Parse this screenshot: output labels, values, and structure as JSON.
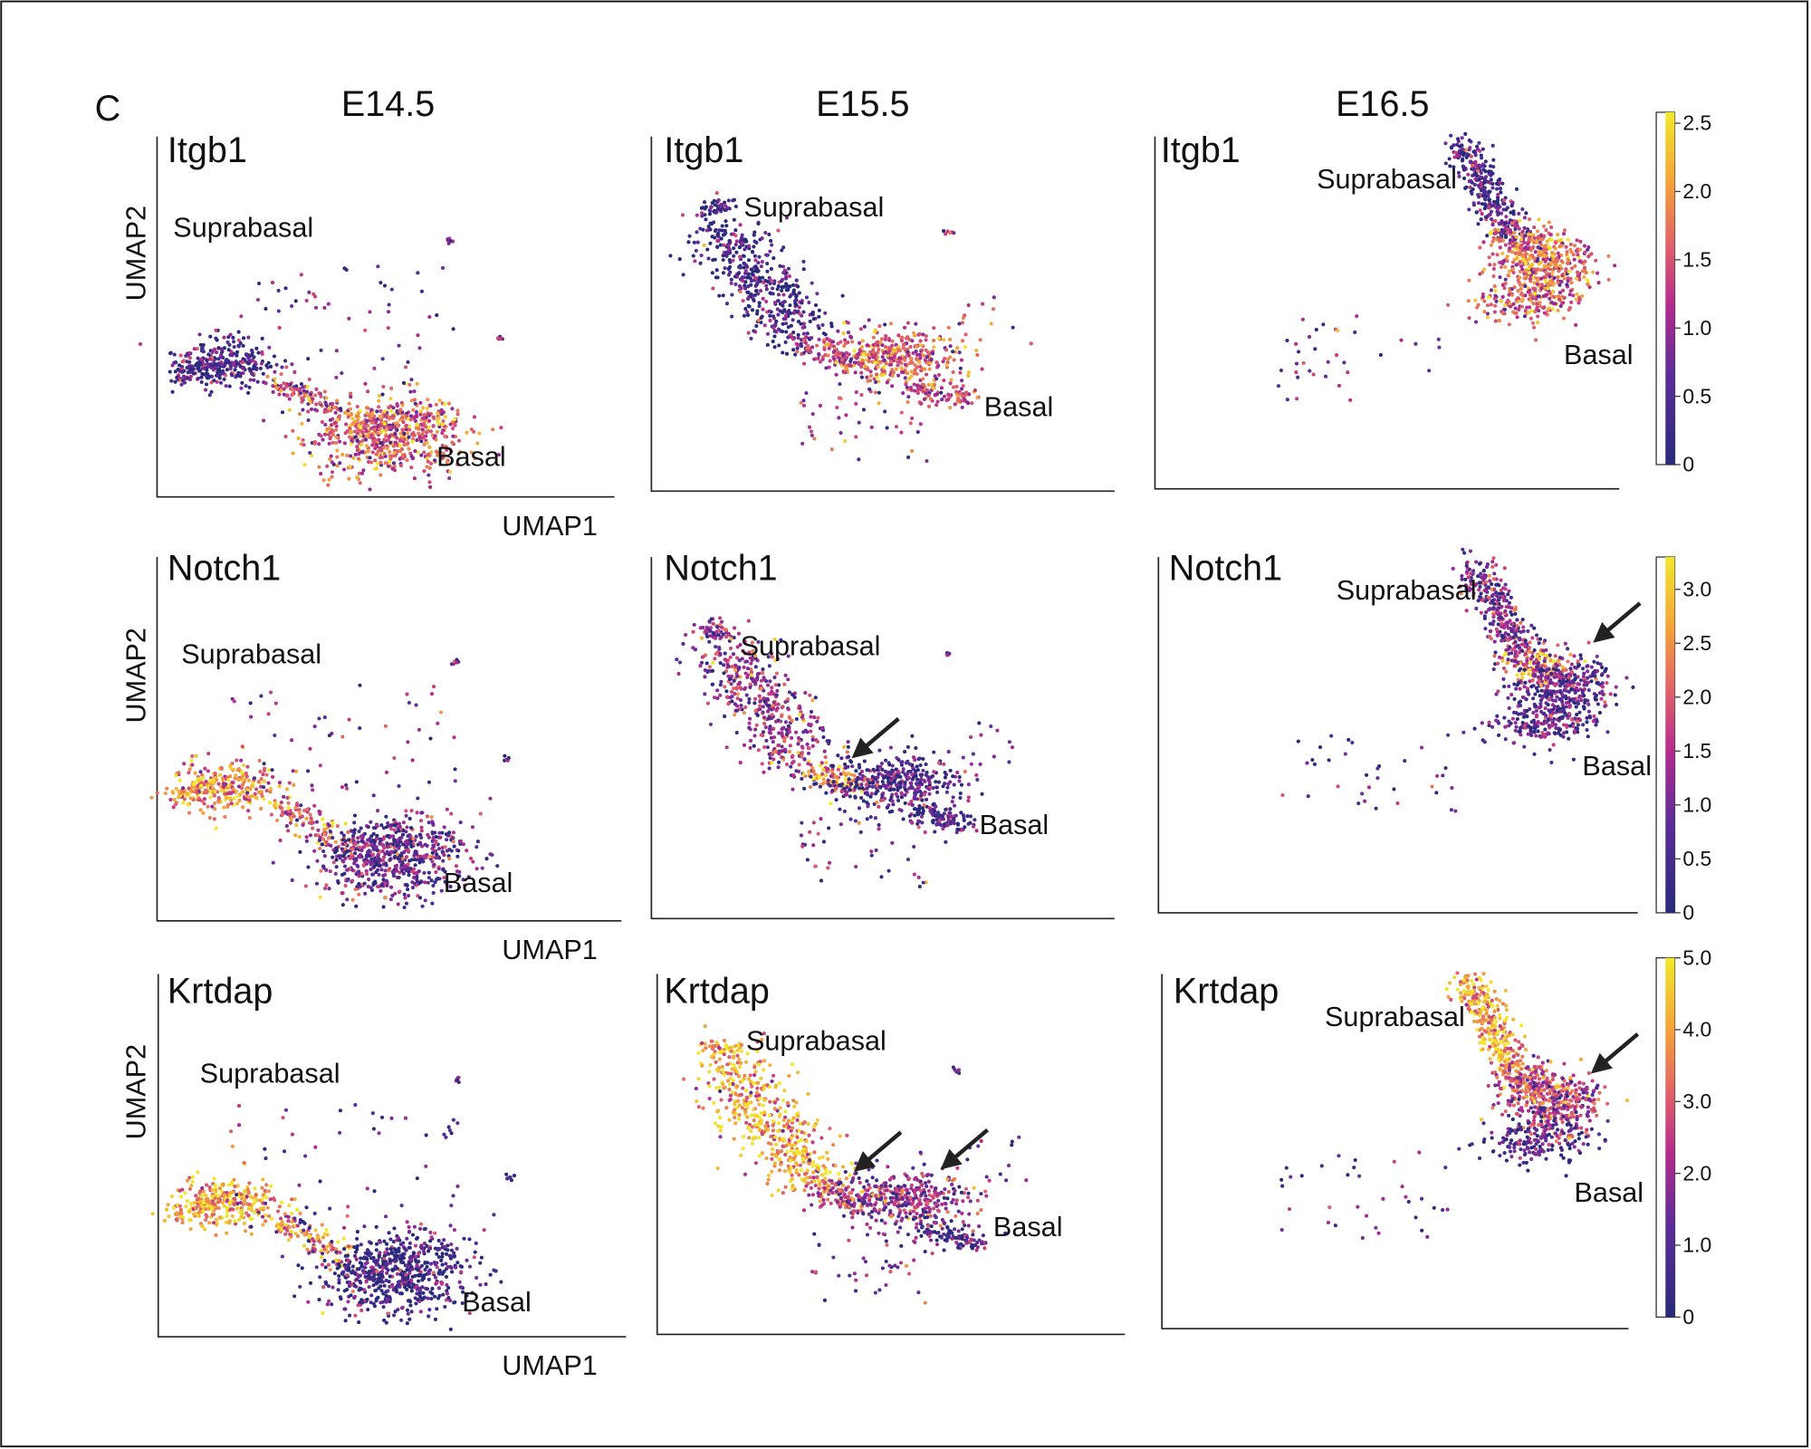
{
  "panel_letter": "C",
  "chart_data": {
    "type": "scatter",
    "subtype": "UMAP feature plots",
    "xlabel": "UMAP1",
    "ylabel": "UMAP2",
    "columns": [
      "E14.5",
      "E15.5",
      "E16.5"
    ],
    "rows": [
      {
        "gene": "Itgb1",
        "colorbar": {
          "min": 0,
          "max": 2.58,
          "ticks": [
            "0",
            "0.5",
            "1.0",
            "1.5",
            "2.0",
            "2.5"
          ],
          "tick_values": [
            0,
            0.5,
            1.0,
            1.5,
            2.0,
            2.5
          ]
        },
        "panels": [
          {
            "timepoint": "E14.5",
            "labels": {
              "top": "Suprabasal",
              "bottom": "Basal"
            },
            "expression": {
              "suprabasal": 0.3,
              "transition": 1.2,
              "basal": 1.5,
              "basal_lower": 1.5,
              "scattered": 0.6
            }
          },
          {
            "timepoint": "E15.5",
            "labels": {
              "top": "Suprabasal",
              "bottom": "Basal"
            },
            "expression": {
              "suprabasal": 0.2,
              "transition": 1.2,
              "basal": 1.5,
              "basal_lower": 1.4,
              "scattered": 1.0
            }
          },
          {
            "timepoint": "E16.5",
            "labels": {
              "top": "Suprabasal",
              "bottom": "Basal"
            },
            "expression": {
              "suprabasal": 0.3,
              "transition": 1.5,
              "basal": 1.6,
              "basal_lower": 1.5,
              "scattered": 0.8
            }
          }
        ]
      },
      {
        "gene": "Notch1",
        "colorbar": {
          "min": 0,
          "max": 3.3,
          "ticks": [
            "0",
            "0.5",
            "1.0",
            "1.5",
            "2.0",
            "2.5",
            "3.0"
          ],
          "tick_values": [
            0,
            0.5,
            1.0,
            1.5,
            2.0,
            2.5,
            3.0
          ]
        },
        "panels": [
          {
            "timepoint": "E14.5",
            "labels": {
              "top": "Suprabasal",
              "bottom": "Basal"
            },
            "expression": {
              "suprabasal": 2.4,
              "transition": 2.0,
              "basal": 0.8,
              "basal_lower": 0.8,
              "scattered": 1.0
            }
          },
          {
            "timepoint": "E15.5",
            "labels": {
              "top": "Suprabasal",
              "bottom": "Basal"
            },
            "expression": {
              "suprabasal": 1.2,
              "transition": 2.5,
              "basal": 0.5,
              "basal_lower": 0.4,
              "scattered": 0.8
            },
            "arrows": 1
          },
          {
            "timepoint": "E16.5",
            "labels": {
              "top": "Suprabasal",
              "bottom": "Basal"
            },
            "expression": {
              "suprabasal": 1.0,
              "transition": 2.3,
              "basal": 0.7,
              "basal_lower": 0.5,
              "scattered": 0.6
            },
            "arrows": 1
          }
        ]
      },
      {
        "gene": "Krtdap",
        "colorbar": {
          "min": 0,
          "max": 5.0,
          "ticks": [
            "0",
            "1.0",
            "2.0",
            "3.0",
            "4.0",
            "5.0"
          ],
          "tick_values": [
            0,
            1,
            2,
            3,
            4,
            5
          ]
        },
        "panels": [
          {
            "timepoint": "E14.5",
            "labels": {
              "top": "Suprabasal",
              "bottom": "Basal"
            },
            "expression": {
              "suprabasal": 4.2,
              "transition": 3.5,
              "basal": 0.4,
              "basal_lower": 0.4,
              "scattered": 0.8
            }
          },
          {
            "timepoint": "E15.5",
            "labels": {
              "top": "Suprabasal",
              "bottom": "Basal"
            },
            "expression": {
              "suprabasal": 4.0,
              "transition": 3.0,
              "basal": 1.8,
              "basal_lower": 0.5,
              "scattered": 1.2
            },
            "arrows": 2
          },
          {
            "timepoint": "E16.5",
            "labels": {
              "top": "Suprabasal",
              "bottom": "Basal"
            },
            "expression": {
              "suprabasal": 4.0,
              "transition": 2.6,
              "basal": 2.3,
              "basal_lower": 0.5,
              "scattered": 1.0
            },
            "arrows": 1
          }
        ]
      }
    ],
    "colormap": [
      "#2a2a7c",
      "#5b2c9a",
      "#b32a8f",
      "#e0606a",
      "#f5a23a",
      "#f2e82a"
    ],
    "grid": false
  }
}
